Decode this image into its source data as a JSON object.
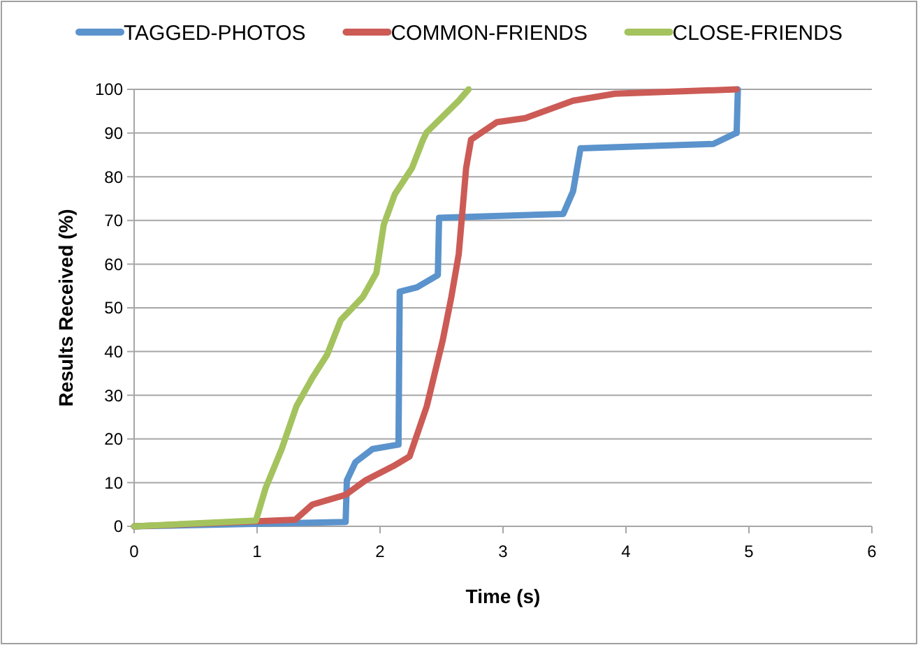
{
  "chart_data": {
    "type": "line",
    "xlabel": "Time (s)",
    "ylabel": "Results Received (%)",
    "xlim": [
      0,
      6
    ],
    "xticks": [
      0,
      1,
      2,
      3,
      4,
      5,
      6
    ],
    "ylim": [
      0,
      100
    ],
    "yticks": [
      0,
      10,
      20,
      30,
      40,
      50,
      60,
      70,
      80,
      90,
      100
    ],
    "grid": "y",
    "legend": "top",
    "marker": "none",
    "line_style": "solid",
    "series": [
      {
        "name": "TAGGED-PHOTOS",
        "color": "#5b93cc",
        "x": [
          0,
          1.72,
          1.73,
          1.8,
          1.94,
          2.15,
          2.16,
          2.3,
          2.47,
          2.48,
          3.49,
          3.57,
          3.63,
          4.71,
          4.88,
          4.9,
          4.91
        ],
        "values": [
          0,
          1,
          10.5,
          14.7,
          17.7,
          18.7,
          53.7,
          54.7,
          57.5,
          70.6,
          71.5,
          76.7,
          86.5,
          87.5,
          89.8,
          90,
          100
        ]
      },
      {
        "name": "COMMON-FRIENDS",
        "color": "#cc5b56",
        "x": [
          0,
          1.31,
          1.45,
          1.72,
          1.88,
          2.11,
          2.24,
          2.38,
          2.51,
          2.58,
          2.64,
          2.7,
          2.74,
          2.95,
          3.18,
          3.57,
          3.91,
          4.9
        ],
        "values": [
          0,
          1.5,
          5,
          7.2,
          10.5,
          13.8,
          16,
          27.5,
          42.6,
          52.5,
          62.3,
          82,
          88.5,
          92.5,
          93.4,
          97.4,
          99,
          100
        ]
      },
      {
        "name": "CLOSE-FRIENDS",
        "color": "#a4c35e",
        "x": [
          0,
          0.99,
          1.07,
          1.2,
          1.32,
          1.45,
          1.57,
          1.68,
          1.86,
          1.97,
          2.03,
          2.12,
          2.26,
          2.35,
          2.38,
          2.64,
          2.72
        ],
        "values": [
          0,
          1.3,
          8.8,
          17.7,
          27.5,
          34,
          39.3,
          47.2,
          52.5,
          58,
          69,
          76,
          82,
          88.5,
          90.2,
          97.4,
          100
        ]
      }
    ]
  }
}
